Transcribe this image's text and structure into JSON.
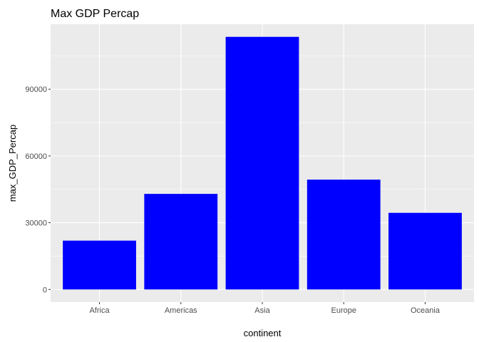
{
  "chart_data": {
    "type": "bar",
    "title": "Max GDP Percap",
    "xlabel": "continent",
    "ylabel": "max_GDP_Percap",
    "categories": [
      "Africa",
      "Americas",
      "Asia",
      "Europe",
      "Oceania"
    ],
    "values": [
      21951,
      42952,
      113523,
      49357,
      34435
    ],
    "ylim": [
      -5676,
      119199
    ],
    "yticks": [
      0,
      30000,
      60000,
      90000
    ],
    "ytick_labels": [
      "0",
      "30000",
      "60000",
      "90000"
    ],
    "grid": true,
    "legend": "none",
    "colors": {
      "bar": "#0000ff",
      "panel": "#ebebeb",
      "gridline": "#ffffff",
      "tick_label": "#4d4d4d",
      "tick_mark": "#333333"
    }
  }
}
